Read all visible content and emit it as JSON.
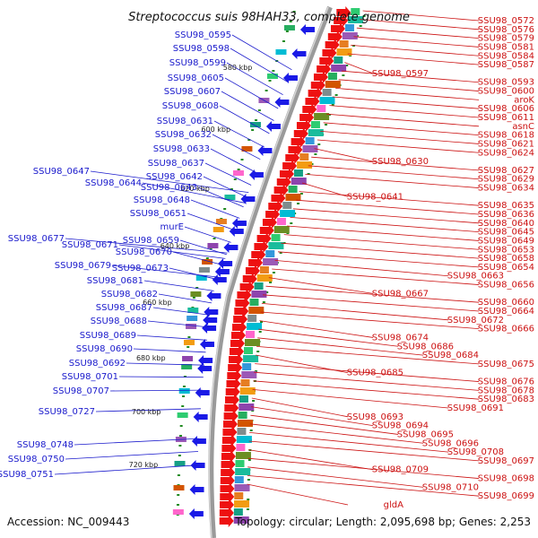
{
  "title": "Streptococcus suis 98HAH33, complete genome",
  "footer": {
    "accession": "Accession: NC_009443",
    "summary": "Topology: circular; Length: 2,095,698 bp; Genes: 2,253"
  },
  "colors": {
    "left_labels": "#1a1acc",
    "right_labels": "#cc1111",
    "left_arrows": "#1a1ae6",
    "right_arrows": "#ee1111",
    "backbone": "#9a9a9a",
    "gc_marks": "#228b22"
  },
  "scale_ticks": [
    "580 kbp",
    "600 kbp",
    "620 kbp",
    "640 kbp",
    "660 kbp",
    "680 kbp",
    "700 kbp",
    "720 kbp"
  ],
  "left_labels": [
    "SSU98_0595",
    "SSU98_0598",
    "SSU98_0599",
    "SSU98_0605",
    "SSU98_0607",
    "SSU98_0608",
    "SSU98_0631",
    "SSU98_0632",
    "SSU98_0633",
    "SSU98_0637",
    "SSU98_0642",
    "SSU98_0647",
    "SSU98_0644",
    "SSU98_0643",
    "SSU98_0648",
    "SSU98_0651",
    "murE",
    "SSU98_0677",
    "SSU98_0659",
    "SSU98_0671",
    "SSU98_0670",
    "SSU98_0679",
    "SSU98_0673",
    "SSU98_0681",
    "SSU98_0682",
    "SSU98_0687",
    "SSU98_0688",
    "SSU98_0689",
    "SSU98_0690",
    "SSU98_0692",
    "SSU98_0701",
    "SSU98_0707",
    "SSU98_0727",
    "SSU98_0748",
    "SSU98_0750",
    "SSU98_0751"
  ],
  "right_labels": [
    "SSU98_0572",
    "SSU98_0576",
    "SSU98_0579",
    "SSU98_0581",
    "SSU98_0584",
    "SSU98_0587",
    "SSU98_0597",
    "SSU98_0593",
    "SSU98_0600",
    "aroK",
    "SSU98_0606",
    "SSU98_0611",
    "asnC",
    "SSU98_0618",
    "SSU98_0621",
    "SSU98_0624",
    "SSU98_0630",
    "SSU98_0627",
    "SSU98_0629",
    "SSU98_0634",
    "SSU98_0641",
    "SSU98_0635",
    "SSU98_0636",
    "SSU98_0640",
    "SSU98_0645",
    "SSU98_0649",
    "SSU98_0653",
    "SSU98_0658",
    "SSU98_0654",
    "SSU98_0663",
    "SSU98_0656",
    "SSU98_0667",
    "SSU98_0660",
    "SSU98_0664",
    "SSU98_0672",
    "SSU98_0666",
    "SSU98_0674",
    "SSU98_0686",
    "SSU98_0684",
    "SSU98_0675",
    "SSU98_0685",
    "SSU98_0676",
    "SSU98_0678",
    "SSU98_0683",
    "SSU98_0691",
    "SSU98_0693",
    "SSU98_0694",
    "SSU98_0695",
    "SSU98_0696",
    "SSU98_0708",
    "SSU98_0697",
    "SSU98_0709",
    "SSU98_0698",
    "SSU98_0710",
    "SSU98_0699",
    "gldA"
  ]
}
